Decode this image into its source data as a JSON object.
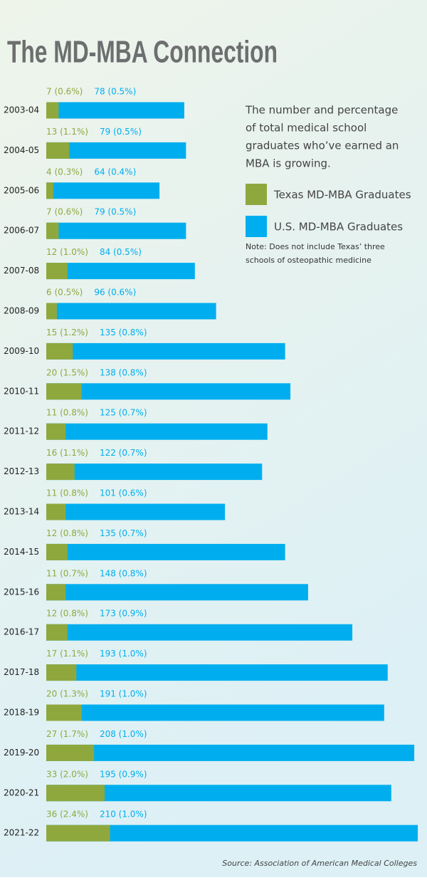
{
  "chart_data": {
    "type": "bar",
    "title": "The MD-MBA Connection",
    "description": [
      "The number and percentage",
      "of total medical school",
      "graduates who’ve earned an",
      "MBA is growing."
    ],
    "note": [
      "Note: Does not include Texas’ three",
      "schools of osteopathic medicine"
    ],
    "source": "Source: Association of American Medical Colleges",
    "categories": [
      "2003-04",
      "2004-05",
      "2005-06",
      "2006-07",
      "2007-08",
      "2008-09",
      "2009-10",
      "2010-11",
      "2011-12",
      "2012-13",
      "2013-14",
      "2014-15",
      "2015-16",
      "2016-17",
      "2017-18",
      "2018-19",
      "2019-20",
      "2020-21",
      "2021-22"
    ],
    "series": [
      {
        "name": "Texas MD-MBA Graduates",
        "color": "#8fa83e",
        "values": [
          7,
          13,
          4,
          7,
          12,
          6,
          15,
          20,
          11,
          16,
          11,
          12,
          11,
          12,
          17,
          20,
          27,
          33,
          36
        ],
        "value_labels": [
          "7 (0.6%)",
          "13 (1.1%)",
          "4 (0.3%)",
          "7 (0.6%)",
          "12 (1.0%)",
          "6 (0.5%)",
          "15 (1.2%)",
          "20 (1.5%)",
          "11 (0.8%)",
          "16 (1.1%)",
          "11 (0.8%)",
          "12 (0.8%)",
          "11 (0.7%)",
          "12 (0.8%)",
          "17 (1.1%)",
          "20 (1.3%)",
          "27 (1.7%)",
          "33 (2.0%)",
          "36 (2.4%)"
        ]
      },
      {
        "name": "U.S. MD-MBA Graduates",
        "color": "#00aeef",
        "values": [
          78,
          79,
          64,
          79,
          84,
          96,
          135,
          138,
          125,
          122,
          101,
          135,
          148,
          173,
          193,
          191,
          208,
          195,
          210
        ],
        "value_labels": [
          "78 (0.5%)",
          "79 (0.5%)",
          "64 (0.4%)",
          "79 (0.5%)",
          "84 (0.5%)",
          "96 (0.6%)",
          "135 (0.8%)",
          "138 (0.8%)",
          "125 (0.7%)",
          "122 (0.7%)",
          "101 (0.6%)",
          "135 (0.7%)",
          "148 (0.8%)",
          "173 (0.9%)",
          "193 (1.0%)",
          "191 (1.0%)",
          "208 (1.0%)",
          "195 (0.9%)",
          "210 (1.0%)"
        ]
      }
    ]
  }
}
